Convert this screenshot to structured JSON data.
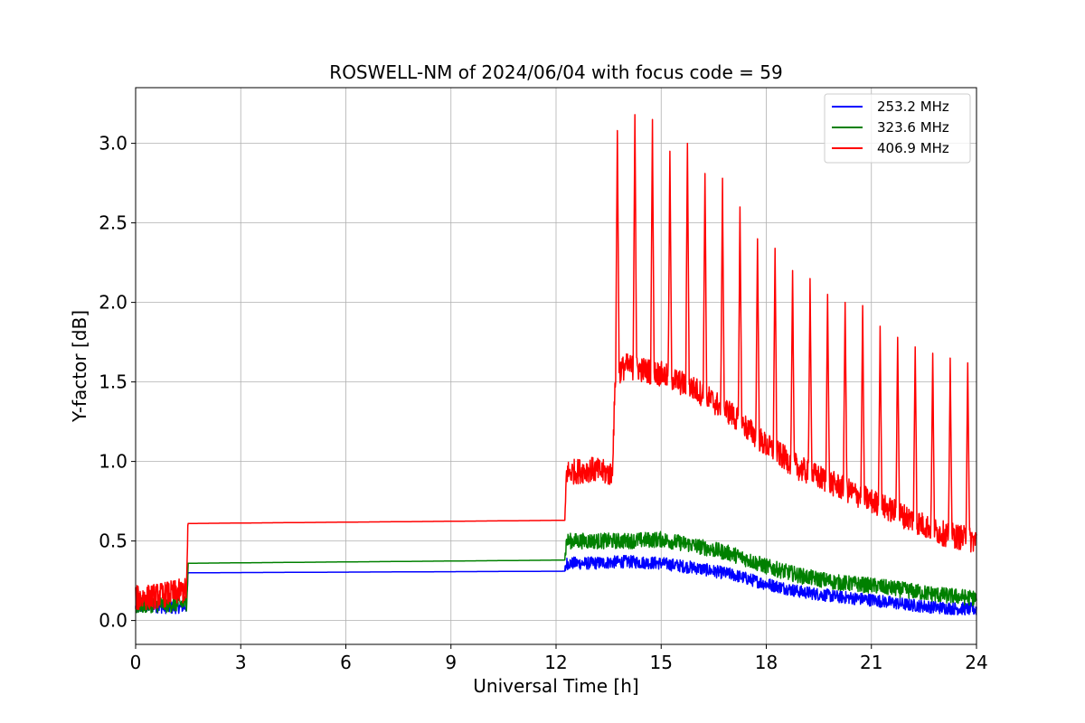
{
  "chart_data": {
    "type": "line",
    "title": "ROSWELL-NM of 2024/06/04 with focus code = 59",
    "xlabel": "Universal Time [h]",
    "ylabel": "Y-factor [dB]",
    "xlim": [
      0,
      24
    ],
    "ylim": [
      -0.15,
      3.35
    ],
    "xticks": [
      0,
      3,
      6,
      9,
      12,
      15,
      18,
      21,
      24
    ],
    "xtick_labels": [
      "0",
      "3",
      "6",
      "9",
      "12",
      "15",
      "18",
      "21",
      "24"
    ],
    "yticks": [
      0.0,
      0.5,
      1.0,
      1.5,
      2.0,
      2.5,
      3.0
    ],
    "ytick_labels": [
      "0.0",
      "0.5",
      "1.0",
      "1.5",
      "2.0",
      "2.5",
      "3.0"
    ],
    "grid": true,
    "legend_position": "top-right",
    "series": [
      {
        "name": "253.2 MHz",
        "color": "#0000ff",
        "x": [
          0,
          0.5,
          1.0,
          1.45,
          1.5,
          12.25,
          12.3,
          13,
          14,
          15,
          16,
          17,
          18,
          19,
          20,
          21,
          22,
          23,
          24
        ],
        "values": [
          0.08,
          0.09,
          0.08,
          0.09,
          0.3,
          0.31,
          0.36,
          0.36,
          0.37,
          0.36,
          0.33,
          0.29,
          0.23,
          0.18,
          0.15,
          0.13,
          0.1,
          0.08,
          0.07
        ],
        "noise": 0.04
      },
      {
        "name": "323.6 MHz",
        "color": "#008000",
        "x": [
          0,
          0.5,
          1.0,
          1.45,
          1.5,
          12.25,
          12.3,
          13,
          14,
          15,
          16,
          17,
          18,
          19,
          20,
          21,
          22,
          23,
          24
        ],
        "values": [
          0.09,
          0.1,
          0.1,
          0.11,
          0.36,
          0.38,
          0.5,
          0.5,
          0.5,
          0.51,
          0.47,
          0.42,
          0.34,
          0.28,
          0.24,
          0.22,
          0.19,
          0.16,
          0.14
        ],
        "noise": 0.05
      },
      {
        "name": "406.9 MHz",
        "color": "#ff0000",
        "x": [
          0,
          0.5,
          1.0,
          1.45,
          1.5,
          12.25,
          12.3,
          13,
          13.6,
          13.7,
          14,
          15,
          16,
          17,
          18,
          19,
          20,
          21,
          22,
          23,
          24
        ],
        "values": [
          0.14,
          0.15,
          0.17,
          0.19,
          0.61,
          0.63,
          0.93,
          0.95,
          0.92,
          1.55,
          1.6,
          1.55,
          1.45,
          1.3,
          1.1,
          0.95,
          0.85,
          0.75,
          0.65,
          0.55,
          0.5
        ],
        "noise": 0.08,
        "spike_peaks": [
          [
            13.75,
            3.08
          ],
          [
            14.25,
            3.18
          ],
          [
            14.75,
            3.15
          ],
          [
            15.25,
            2.95
          ],
          [
            15.75,
            3.0
          ],
          [
            16.25,
            2.81
          ],
          [
            16.75,
            2.78
          ],
          [
            17.25,
            2.6
          ],
          [
            17.75,
            2.4
          ],
          [
            18.25,
            2.34
          ],
          [
            18.75,
            2.2
          ],
          [
            19.25,
            2.15
          ],
          [
            19.75,
            2.05
          ],
          [
            20.25,
            2.0
          ],
          [
            20.75,
            1.98
          ],
          [
            21.25,
            1.85
          ],
          [
            21.75,
            1.78
          ],
          [
            22.25,
            1.72
          ],
          [
            22.75,
            1.68
          ],
          [
            23.25,
            1.65
          ],
          [
            23.75,
            1.62
          ]
        ]
      }
    ]
  }
}
